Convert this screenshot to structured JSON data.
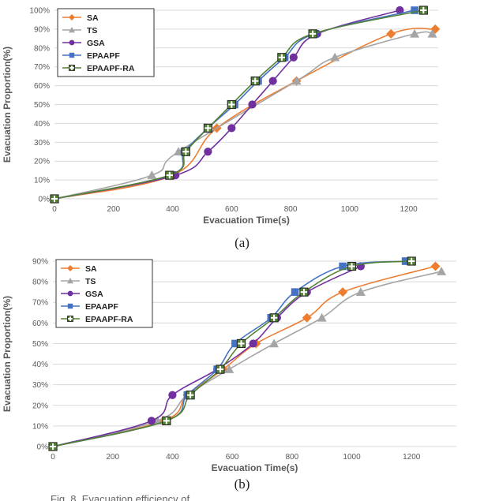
{
  "figure": {
    "sub_labels": [
      "(a)",
      "(b)"
    ],
    "caption": "Fig. 8. Evacuation efficiency of ..."
  },
  "colors": {
    "SA": "#ED7D31",
    "TS": "#A5A5A5",
    "GSA": "#7030A0",
    "EPAAPF": "#4472C4",
    "EPAAPF-RA": "#548235",
    "grid": "#D9D9D9",
    "axis_text": "#595959"
  },
  "chart_data": [
    {
      "type": "line",
      "xlabel": "Evacuation Time(s)",
      "ylabel": "Evacuation Proportion(%)",
      "xlim": [
        0,
        1300
      ],
      "ylim": [
        0,
        100
      ],
      "xticks": [
        0,
        200,
        400,
        600,
        800,
        1000,
        1200
      ],
      "yticks": [
        0,
        10,
        20,
        30,
        40,
        50,
        60,
        70,
        80,
        90,
        100
      ],
      "tick_suffix": "%",
      "grid": "horizontal",
      "legend_position": "top-left",
      "series": [
        {
          "name": "SA",
          "marker": "diamond",
          "x": [
            0,
            400,
            550,
            820,
            1140,
            1290
          ],
          "y": [
            0,
            12.5,
            37.5,
            62.5,
            87.5,
            90
          ]
        },
        {
          "name": "TS",
          "marker": "triangle",
          "x": [
            0,
            330,
            420,
            820,
            950,
            1220,
            1280
          ],
          "y": [
            0,
            12.5,
            25,
            62.5,
            75,
            87.5,
            87.5
          ]
        },
        {
          "name": "GSA",
          "marker": "circle",
          "x": [
            0,
            410,
            520,
            600,
            670,
            740,
            810,
            890,
            1170
          ],
          "y": [
            0,
            12.5,
            25,
            37.5,
            50,
            62.5,
            75,
            87.5,
            100
          ]
        },
        {
          "name": "EPAAPF",
          "marker": "square",
          "x": [
            0,
            390,
            440,
            520,
            610,
            690,
            780,
            880,
            1220
          ],
          "y": [
            0,
            12.5,
            25,
            37.5,
            50,
            62.5,
            75,
            87.5,
            100
          ]
        },
        {
          "name": "EPAAPF-RA",
          "marker": "plus-square",
          "x": [
            0,
            390,
            445,
            520,
            600,
            680,
            770,
            875,
            1250
          ],
          "y": [
            0,
            12.5,
            25,
            37.5,
            50,
            62.5,
            75,
            87.5,
            100
          ]
        }
      ]
    },
    {
      "type": "line",
      "xlabel": "Evacuation Time(s)",
      "ylabel": "Evacuation Proportion(%)",
      "xlim": [
        0,
        1350
      ],
      "ylim": [
        0,
        90
      ],
      "xticks": [
        0,
        200,
        400,
        600,
        800,
        1000,
        1200
      ],
      "yticks": [
        0,
        10,
        20,
        30,
        40,
        50,
        60,
        70,
        80,
        90
      ],
      "tick_suffix": "%",
      "grid": "horizontal",
      "legend_position": "top-left",
      "series": [
        {
          "name": "SA",
          "marker": "diamond",
          "x": [
            0,
            370,
            450,
            570,
            680,
            850,
            970,
            1280
          ],
          "y": [
            0,
            12.5,
            25,
            37.5,
            50,
            62.5,
            75,
            87.5
          ]
        },
        {
          "name": "TS",
          "marker": "triangle",
          "x": [
            0,
            350,
            450,
            590,
            740,
            900,
            1030,
            1300
          ],
          "y": [
            0,
            12.5,
            25,
            37.5,
            50,
            62.5,
            75,
            85
          ]
        },
        {
          "name": "GSA",
          "marker": "circle",
          "x": [
            0,
            330,
            400,
            550,
            670,
            750,
            850,
            1030
          ],
          "y": [
            0,
            12.5,
            25,
            37.5,
            50,
            62.5,
            75,
            87.5
          ]
        },
        {
          "name": "EPAAPF",
          "marker": "square",
          "x": [
            0,
            380,
            450,
            550,
            610,
            730,
            810,
            970,
            1180
          ],
          "y": [
            0,
            12.5,
            25,
            37.5,
            50,
            62.5,
            75,
            87.5,
            90
          ]
        },
        {
          "name": "EPAAPF-RA",
          "marker": "plus-square",
          "x": [
            0,
            380,
            460,
            560,
            630,
            740,
            840,
            1000,
            1200
          ],
          "y": [
            0,
            12.5,
            25,
            37.5,
            50,
            62.5,
            75,
            87.5,
            90
          ]
        }
      ]
    }
  ]
}
